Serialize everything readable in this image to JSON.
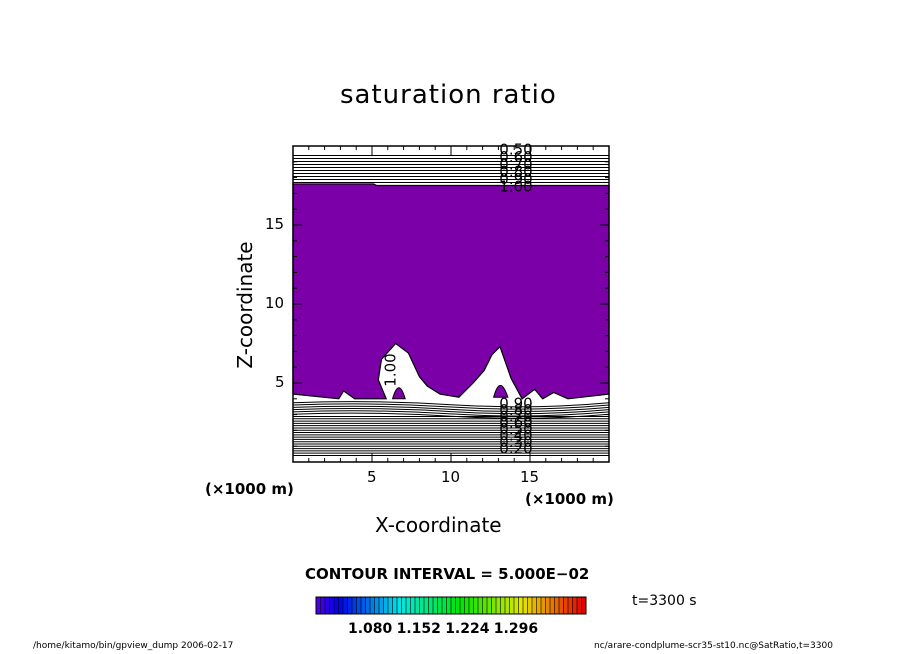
{
  "chart_data": {
    "type": "contour",
    "title": "saturation ratio",
    "xlabel": "X-coordinate",
    "ylabel": "Z-coordinate",
    "x_unit_left": "(×1000 m)",
    "x_unit_right": "(×1000 m)",
    "xlim": [
      0,
      20
    ],
    "ylim": [
      0,
      20
    ],
    "x_ticks": [
      "5",
      "10",
      "15"
    ],
    "y_ticks": [
      "5",
      "10",
      "15"
    ],
    "contour_interval_text": "CONTOUR INTERVAL = 5.000E−02",
    "contour_labels_top": [
      "0.50",
      "0.60",
      "0.70",
      "0.80",
      "0.90",
      "1.00"
    ],
    "contour_labels_bottom": [
      "0.90",
      "0.80",
      "0.70",
      "0.60",
      "0.50",
      "0.40",
      "0.30",
      "0.20"
    ],
    "inline_label": "1.00",
    "colorbar_ticks": [
      "1.080",
      "1.152",
      "1.224",
      "1.296"
    ],
    "colorbar_range": [
      1.0,
      1.4
    ],
    "fill_color": "#7b00a8",
    "time_label": "t=3300 s"
  },
  "footer": {
    "left": "/home/kitamo/bin/gpview_dump  2006-02-17",
    "right": "nc/arare-condplume-scr35-st10.nc@SatRatio,t=3300"
  }
}
